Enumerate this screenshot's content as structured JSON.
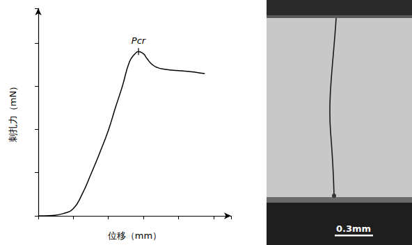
{
  "chart_data": {
    "type": "line",
    "x_label": "位移（mm）",
    "y_label": "刺扎力（mN）",
    "x": [
      0,
      0.4,
      0.7,
      1.0,
      1.25,
      1.5,
      1.75,
      2.0,
      2.2,
      2.4,
      2.6,
      2.75,
      2.86,
      3.0,
      3.1,
      3.25,
      3.4,
      3.6,
      3.8,
      4.0,
      4.3,
      4.5,
      4.75
    ],
    "values": [
      0,
      0.01,
      0.05,
      0.17,
      0.5,
      0.96,
      1.45,
      1.98,
      2.5,
      3.0,
      3.56,
      3.74,
      3.8,
      3.75,
      3.64,
      3.5,
      3.43,
      3.39,
      3.37,
      3.36,
      3.34,
      3.32,
      3.29
    ],
    "color": "#000000",
    "xlim": [
      0,
      5.5
    ],
    "ylim": [
      0,
      4.8
    ],
    "xticks": [
      0,
      1,
      2,
      3,
      4,
      5
    ],
    "yticks": [
      0,
      1,
      2,
      3,
      4
    ],
    "tick_labels": false,
    "grid": false,
    "annotations": [
      {
        "text": "Pcr",
        "x": 2.86,
        "y": 3.8
      }
    ]
  },
  "image": {
    "scale_bar": "0.3mm"
  }
}
